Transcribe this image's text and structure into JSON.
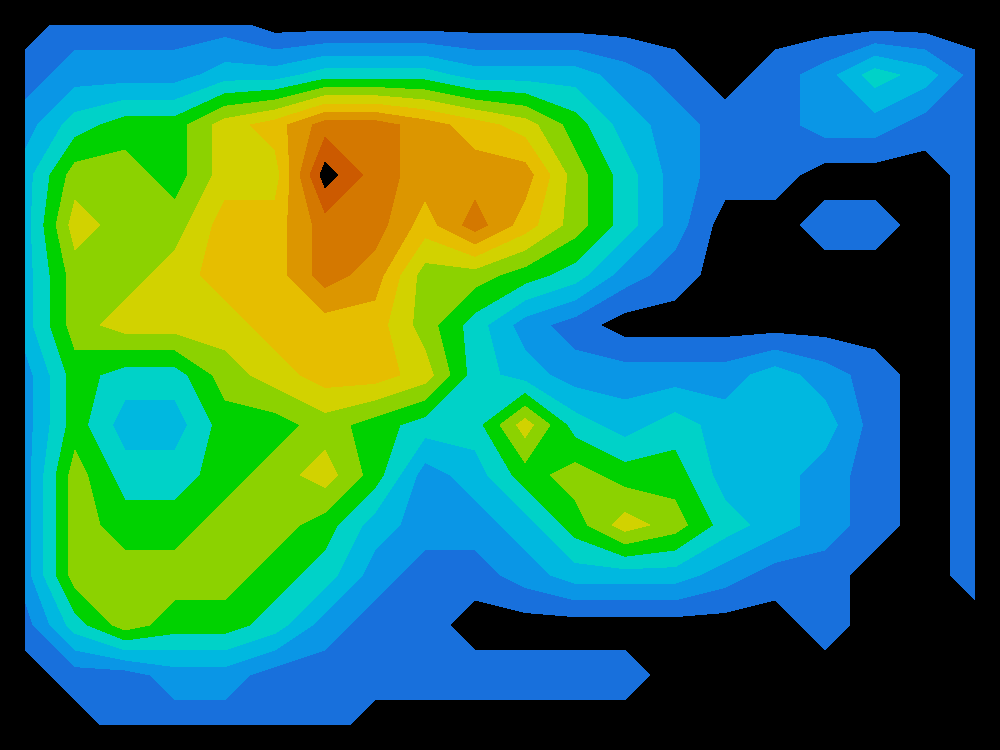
{
  "chart_data": {
    "type": "contour",
    "x": [
      25,
      75,
      125,
      175,
      225,
      275,
      325,
      375,
      425,
      475,
      525,
      575,
      625,
      675,
      725,
      775,
      825,
      875,
      925,
      975
    ],
    "y": [
      25,
      75,
      125,
      175,
      225,
      275,
      325,
      375,
      425,
      475,
      525,
      575,
      625,
      675,
      725
    ],
    "xlim": [
      0,
      1000
    ],
    "ylim": [
      750,
      0
    ],
    "values": [
      [
        0,
        1,
        1,
        1,
        1,
        0,
        0,
        0,
        0,
        0,
        0,
        0,
        0,
        0,
        0,
        0,
        0,
        0,
        0,
        0
      ],
      [
        1,
        2,
        2,
        2,
        3,
        3,
        4,
        4,
        4,
        3,
        3,
        3,
        2,
        1,
        0,
        1,
        2,
        4,
        3,
        1
      ],
      [
        2,
        4,
        5,
        5,
        7,
        8,
        10,
        10,
        9,
        8,
        7,
        5,
        3,
        2,
        1,
        1,
        2,
        2,
        1,
        1
      ],
      [
        3,
        6,
        6,
        5,
        7,
        7,
        12,
        10,
        9,
        9,
        9,
        6,
        4,
        2,
        1,
        1,
        0,
        0,
        0,
        1
      ],
      [
        3,
        7,
        6,
        6,
        8,
        8,
        10,
        10,
        8,
        10,
        8,
        6,
        4,
        2,
        0,
        0,
        1,
        1,
        0,
        1
      ],
      [
        3,
        6,
        6,
        7,
        8,
        8,
        10,
        9,
        6,
        6,
        5,
        4,
        2,
        1,
        0,
        0,
        0,
        0,
        0,
        1
      ],
      [
        3,
        6,
        7,
        7,
        7,
        8,
        8,
        8,
        6,
        4,
        2,
        1,
        0,
        0,
        0,
        0,
        0,
        0,
        0,
        1
      ],
      [
        2,
        5,
        4,
        4,
        6,
        7,
        8,
        8,
        7,
        4,
        3,
        2,
        2,
        2,
        2,
        3,
        2,
        1,
        0,
        1
      ],
      [
        2,
        5,
        3,
        3,
        5,
        5,
        6,
        5,
        4,
        4,
        7,
        4,
        3,
        4,
        3,
        3,
        3,
        1,
        0,
        1
      ],
      [
        2,
        6,
        4,
        4,
        5,
        6,
        7,
        5,
        2,
        3,
        5,
        6,
        5,
        5,
        3,
        3,
        2,
        1,
        0,
        1
      ],
      [
        2,
        6,
        5,
        5,
        6,
        6,
        5,
        3,
        2,
        2,
        3,
        5,
        7,
        6,
        4,
        3,
        2,
        1,
        0,
        1
      ],
      [
        2,
        6,
        6,
        6,
        6,
        5,
        4,
        2,
        1,
        1,
        2,
        3,
        3,
        3,
        2,
        1,
        1,
        0,
        0,
        1
      ],
      [
        1,
        4,
        6,
        5,
        5,
        4,
        2,
        1,
        1,
        0,
        0,
        0,
        0,
        0,
        0,
        0,
        1,
        0,
        0,
        0
      ],
      [
        0,
        1,
        1,
        2,
        2,
        1,
        1,
        1,
        1,
        1,
        1,
        1,
        1,
        0,
        0,
        0,
        0,
        0,
        0,
        0
      ],
      [
        0,
        0,
        1,
        1,
        1,
        1,
        1,
        0,
        0,
        0,
        0,
        0,
        0,
        0,
        0,
        0,
        0,
        0,
        0,
        0
      ]
    ],
    "levels": [
      0.5,
      1.5,
      2.5,
      3.5,
      4.5,
      5.5,
      6.5,
      7.5,
      8.5,
      9.5,
      10.5,
      11.5
    ],
    "colors": [
      "#000000",
      "#1870dc",
      "#0a96e6",
      "#00b8e0",
      "#00d2c8",
      "#00d200",
      "#8cd200",
      "#d2d200",
      "#e6be00",
      "#dc9600",
      "#d47800",
      "#cc5a00",
      "#000000"
    ],
    "tick_labels": false
  }
}
